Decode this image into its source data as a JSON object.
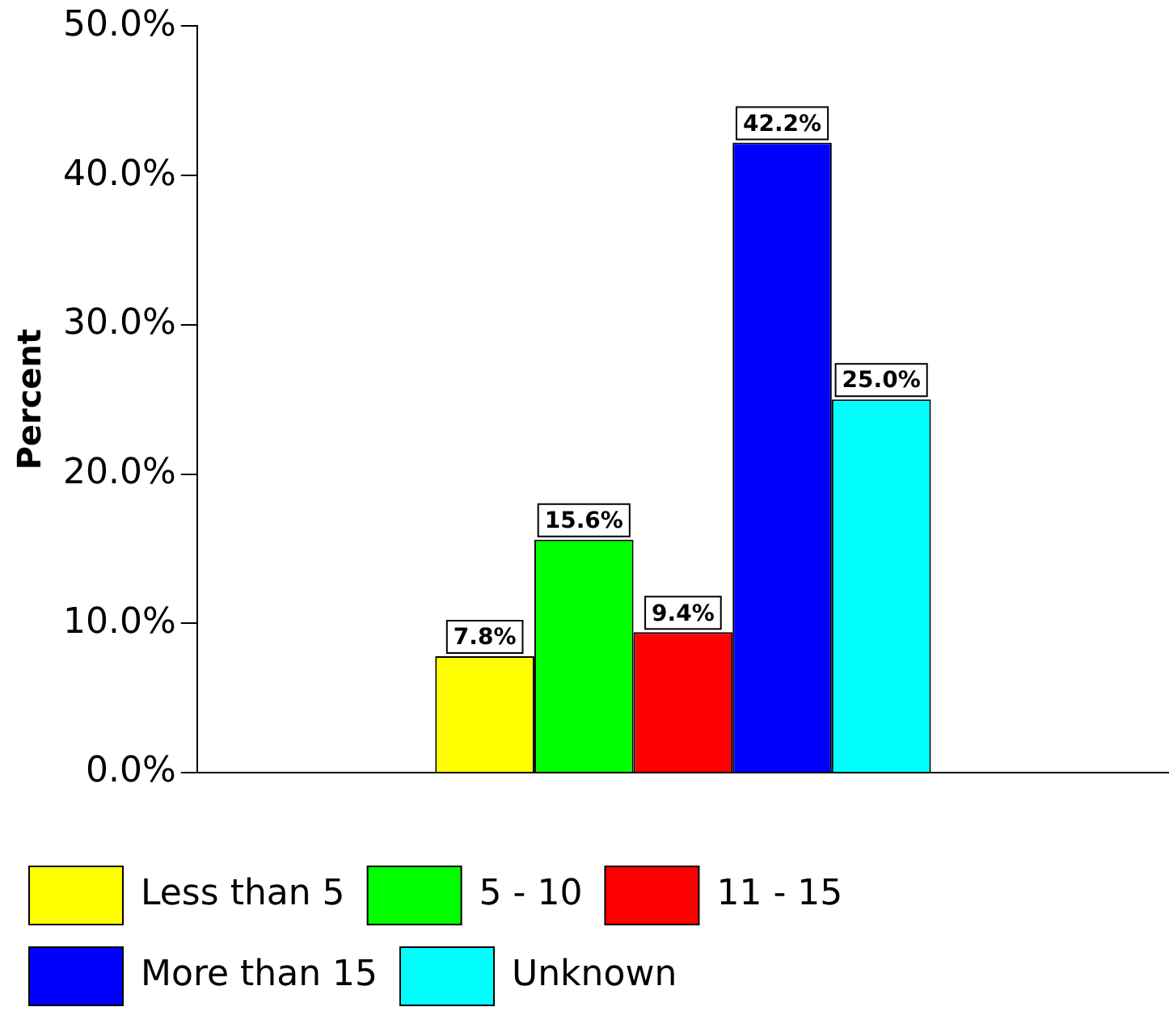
{
  "chart_data": {
    "type": "bar",
    "ylabel": "Percent",
    "categories": [
      null
    ],
    "series": [
      {
        "name": "Less than 5",
        "color": "#ffff00",
        "values": [
          7.8
        ],
        "value_labels": [
          "7.8%"
        ]
      },
      {
        "name": "5 - 10",
        "color": "#00ff00",
        "values": [
          15.6
        ],
        "value_labels": [
          "15.6%"
        ]
      },
      {
        "name": "11 - 15",
        "color": "#ff0000",
        "values": [
          9.4
        ],
        "value_labels": [
          "9.4%"
        ]
      },
      {
        "name": "More than 15",
        "color": "#0000ff",
        "values": [
          42.2
        ],
        "value_labels": [
          "42.2%"
        ]
      },
      {
        "name": "Unknown",
        "color": "#00ffff",
        "values": [
          25.0
        ],
        "value_labels": [
          "25.0%"
        ]
      }
    ],
    "ylim": [
      0,
      50
    ],
    "yticks": [
      {
        "value": 0,
        "label": "0.0%"
      },
      {
        "value": 10,
        "label": "10.0%"
      },
      {
        "value": 20,
        "label": "20.0%"
      },
      {
        "value": 30,
        "label": "30.0%"
      },
      {
        "value": 40,
        "label": "40.0%"
      },
      {
        "value": 50,
        "label": "50.0%"
      }
    ],
    "grid": false,
    "legend": "bottom"
  }
}
